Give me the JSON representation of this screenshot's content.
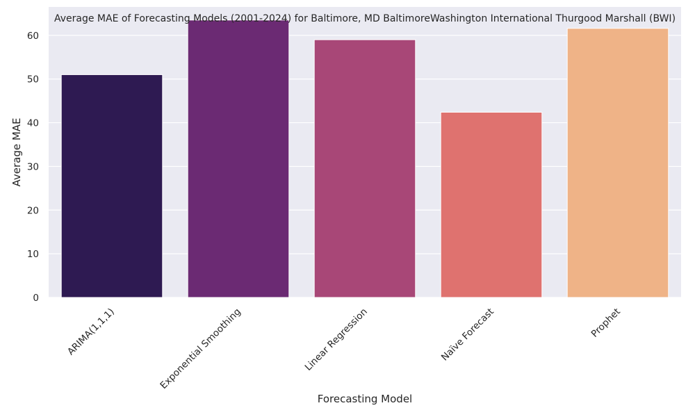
{
  "chart_data": {
    "type": "bar",
    "title": "Average MAE of Forecasting Models (2001-2024) for Baltimore, MD BaltimoreWashington International Thurgood Marshall (BWI)",
    "xlabel": "Forecasting Model",
    "ylabel": "Average MAE",
    "categories": [
      "ARIMA(1,1,1)",
      "Exponential Smoothing",
      "Linear Regression",
      "Naïve Forecast",
      "Prophet"
    ],
    "values": [
      51.0,
      63.5,
      59.0,
      42.4,
      61.6
    ],
    "colors": [
      "#2e1a52",
      "#6b2a73",
      "#a84777",
      "#df726f",
      "#efb387"
    ],
    "ylim": [
      0,
      66.5
    ],
    "yticks": [
      "0",
      "10",
      "20",
      "30",
      "40",
      "50",
      "60"
    ],
    "grid": true,
    "legend": "none",
    "plot_background": "#eaeaf2",
    "grid_color": "#ffffff"
  }
}
